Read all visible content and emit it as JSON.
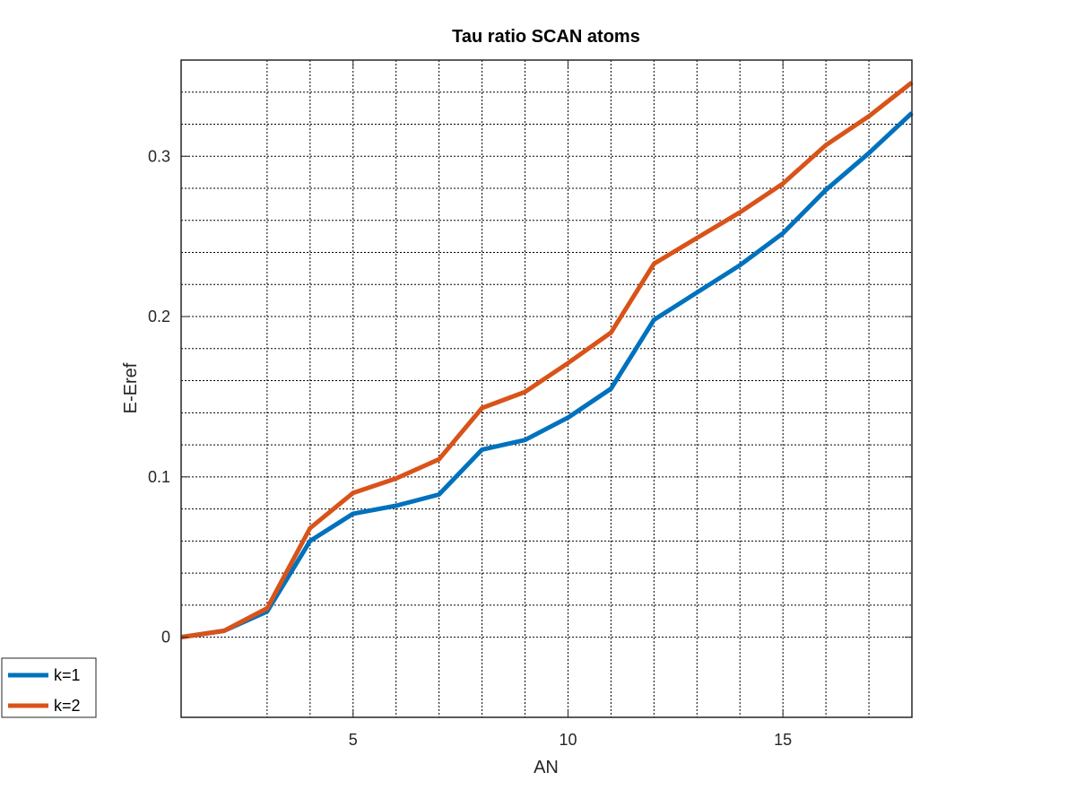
{
  "chart_data": {
    "type": "line",
    "title": "Tau ratio SCAN atoms",
    "xlabel": "AN",
    "ylabel": "E-Eref",
    "xlim": [
      1,
      18
    ],
    "ylim": [
      -0.05,
      0.36
    ],
    "x_ticks": [
      5,
      10,
      15
    ],
    "x_tick_labels": [
      "5",
      "10",
      "15"
    ],
    "x_minor_grid": [
      3,
      4,
      6,
      7,
      8,
      9,
      11,
      12,
      13,
      14,
      16,
      17
    ],
    "y_ticks": [
      0,
      0.1,
      0.2,
      0.3
    ],
    "y_tick_labels": [
      "0",
      "0.1",
      "0.2",
      "0.3"
    ],
    "y_minor_step": 0.02,
    "grid": true,
    "legend_position": "outside-bottom-left",
    "x": [
      1,
      2,
      3,
      4,
      5,
      6,
      7,
      8,
      9,
      10,
      11,
      12,
      13,
      14,
      15,
      16,
      17,
      18
    ],
    "series": [
      {
        "name": "k=1",
        "color": "#0072BD",
        "values": [
          0.0,
          0.004,
          0.016,
          0.06,
          0.077,
          0.082,
          0.089,
          0.117,
          0.123,
          0.137,
          0.155,
          0.198,
          0.215,
          0.232,
          0.252,
          0.279,
          0.302,
          0.327
        ]
      },
      {
        "name": "k=2",
        "color": "#D95319",
        "values": [
          0.0,
          0.004,
          0.018,
          0.068,
          0.09,
          0.099,
          0.111,
          0.143,
          0.153,
          0.171,
          0.19,
          0.233,
          0.249,
          0.265,
          0.283,
          0.307,
          0.325,
          0.346
        ]
      }
    ]
  }
}
